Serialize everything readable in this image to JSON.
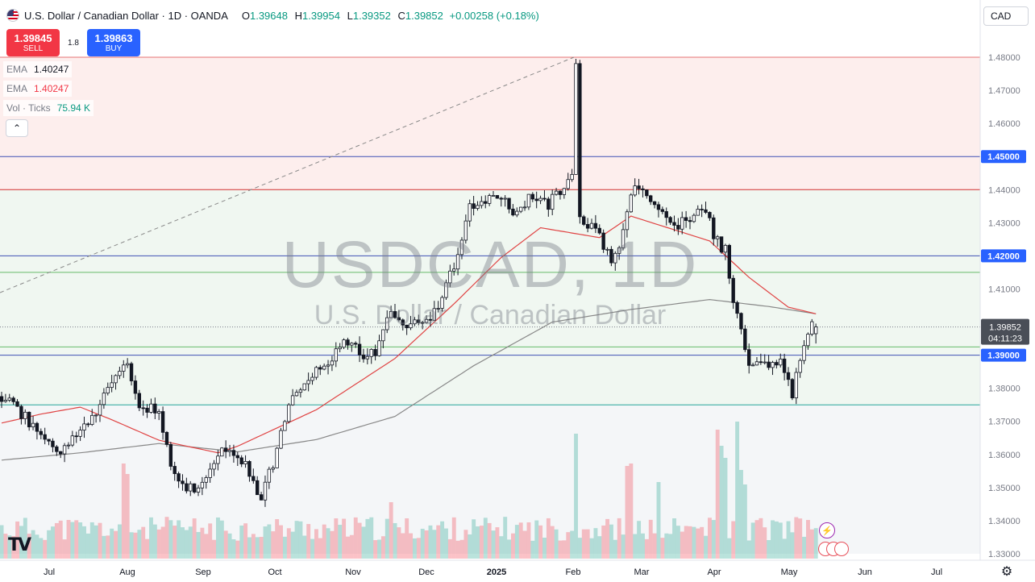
{
  "header": {
    "title": "U.S. Dollar / Canadian Dollar · 1D · OANDA",
    "o_label": "O",
    "o": "1.39648",
    "h_label": "H",
    "h": "1.39954",
    "l_label": "L",
    "l": "1.39352",
    "c_label": "C",
    "c": "1.39852",
    "change": "+0.00258 (+0.18%)",
    "currency": "CAD"
  },
  "trade": {
    "sell_price": "1.39845",
    "sell_label": "SELL",
    "spread": "1.8",
    "buy_price": "1.39863",
    "buy_label": "BUY"
  },
  "indicators": [
    {
      "name": "EMA",
      "value": "1.40247",
      "color": "#787b86"
    },
    {
      "name": "EMA",
      "value": "1.40247",
      "color": "#f23645"
    },
    {
      "name": "Vol · Ticks",
      "value": "75.94 K",
      "color": "#089981"
    }
  ],
  "watermark": {
    "symbol": "USDCAD, 1D",
    "name": "U.S. Dollar / Canadian Dollar"
  },
  "colors": {
    "up": "#089981",
    "down": "#f23645",
    "accent": "#2962ff",
    "ema_fast": "#e04343",
    "ema_slow": "#888888"
  },
  "icons": [
    "flag-icon",
    "chevron-up-icon",
    "settings-icon",
    "lightning-icon",
    "tradingview-logo"
  ],
  "chart_data": {
    "type": "candlestick",
    "symbol": "USDCAD",
    "timeframe": "1D",
    "ylim": [
      1.328,
      1.4825
    ],
    "y_ticks": [
      "1.48000",
      "1.47000",
      "1.46000",
      "1.45000",
      "1.44000",
      "1.43000",
      "1.42000",
      "1.41000",
      "1.40000",
      "1.39000",
      "1.38000",
      "1.37000",
      "1.36000",
      "1.35000",
      "1.34000",
      "1.33000"
    ],
    "x_ticks": [
      "Jul",
      "Aug",
      "Sep",
      "Oct",
      "Nov",
      "Dec",
      "2025",
      "Feb",
      "Mar",
      "Apr",
      "May",
      "Jun",
      "Jul"
    ],
    "price_labels": [
      {
        "price": 1.45,
        "text": "1.45000",
        "kind": "level"
      },
      {
        "price": 1.42,
        "text": "1.42000",
        "kind": "level"
      },
      {
        "price": 1.39852,
        "text": "1.39852",
        "sub": "04:11:23",
        "kind": "last"
      },
      {
        "price": 1.39,
        "text": "1.39000",
        "kind": "level"
      }
    ],
    "horizontal_lines": [
      {
        "price": 1.48,
        "color": "#e57373"
      },
      {
        "price": 1.45,
        "color": "#3f51b5"
      },
      {
        "price": 1.44,
        "color": "#d32f2f"
      },
      {
        "price": 1.42,
        "color": "#3f51b5"
      },
      {
        "price": 1.415,
        "color": "#66bb6a"
      },
      {
        "price": 1.3925,
        "color": "#66bb6a"
      },
      {
        "price": 1.39,
        "color": "#3f51b5"
      },
      {
        "price": 1.375,
        "color": "#26a69a"
      }
    ],
    "ema_50_anchors": [
      [
        0,
        1.3695
      ],
      [
        10,
        1.3722
      ],
      [
        20,
        1.3743
      ],
      [
        28,
        1.3705
      ],
      [
        40,
        1.3643
      ],
      [
        55,
        1.3605
      ],
      [
        60,
        1.3625
      ],
      [
        80,
        1.3735
      ],
      [
        100,
        1.389
      ],
      [
        115,
        1.4055
      ],
      [
        127,
        1.4195
      ],
      [
        137,
        1.4285
      ],
      [
        152,
        1.4255
      ],
      [
        160,
        1.432
      ],
      [
        172,
        1.4275
      ],
      [
        180,
        1.4245
      ],
      [
        190,
        1.4135
      ],
      [
        200,
        1.4045
      ],
      [
        207,
        1.4025
      ]
    ],
    "ema_200_anchors": [
      [
        0,
        1.3583
      ],
      [
        20,
        1.3605
      ],
      [
        40,
        1.3633
      ],
      [
        60,
        1.3608
      ],
      [
        80,
        1.3645
      ],
      [
        100,
        1.3715
      ],
      [
        120,
        1.3868
      ],
      [
        140,
        1.4
      ],
      [
        160,
        1.4038
      ],
      [
        180,
        1.4068
      ],
      [
        195,
        1.4047
      ],
      [
        207,
        1.4025
      ]
    ],
    "price_anchors": [
      [
        0,
        1.3775
      ],
      [
        5,
        1.3725
      ],
      [
        10,
        1.3655
      ],
      [
        14,
        1.3605
      ],
      [
        18,
        1.3655
      ],
      [
        24,
        1.373
      ],
      [
        28,
        1.381
      ],
      [
        32,
        1.3875
      ],
      [
        35,
        1.3755
      ],
      [
        40,
        1.3725
      ],
      [
        43,
        1.3575
      ],
      [
        46,
        1.3495
      ],
      [
        50,
        1.3495
      ],
      [
        55,
        1.3605
      ],
      [
        58,
        1.3615
      ],
      [
        61,
        1.3585
      ],
      [
        64,
        1.352
      ],
      [
        66,
        1.3465
      ],
      [
        69,
        1.3575
      ],
      [
        73,
        1.3745
      ],
      [
        78,
        1.383
      ],
      [
        84,
        1.3895
      ],
      [
        88,
        1.3945
      ],
      [
        92,
        1.3895
      ],
      [
        95,
        1.3915
      ],
      [
        99,
        1.4025
      ],
      [
        102,
        1.4005
      ],
      [
        106,
        1.3985
      ],
      [
        110,
        1.4025
      ],
      [
        115,
        1.4165
      ],
      [
        119,
        1.4345
      ],
      [
        123,
        1.4365
      ],
      [
        127,
        1.4375
      ],
      [
        131,
        1.4325
      ],
      [
        135,
        1.4385
      ],
      [
        139,
        1.4355
      ],
      [
        142,
        1.4395
      ],
      [
        145,
        1.4435
      ],
      [
        146,
        1.4765
      ],
      [
        147,
        1.4315
      ],
      [
        151,
        1.4285
      ],
      [
        155,
        1.4175
      ],
      [
        158,
        1.4275
      ],
      [
        161,
        1.4425
      ],
      [
        165,
        1.4375
      ],
      [
        170,
        1.4285
      ],
      [
        175,
        1.4315
      ],
      [
        179,
        1.4345
      ],
      [
        181,
        1.4255
      ],
      [
        184,
        1.4215
      ],
      [
        186,
        1.4065
      ],
      [
        188,
        1.3985
      ],
      [
        190,
        1.3875
      ],
      [
        193,
        1.3875
      ],
      [
        198,
        1.3875
      ],
      [
        201,
        1.3785
      ],
      [
        204,
        1.3945
      ],
      [
        206,
        1.3985
      ],
      [
        207,
        1.39852
      ]
    ]
  }
}
